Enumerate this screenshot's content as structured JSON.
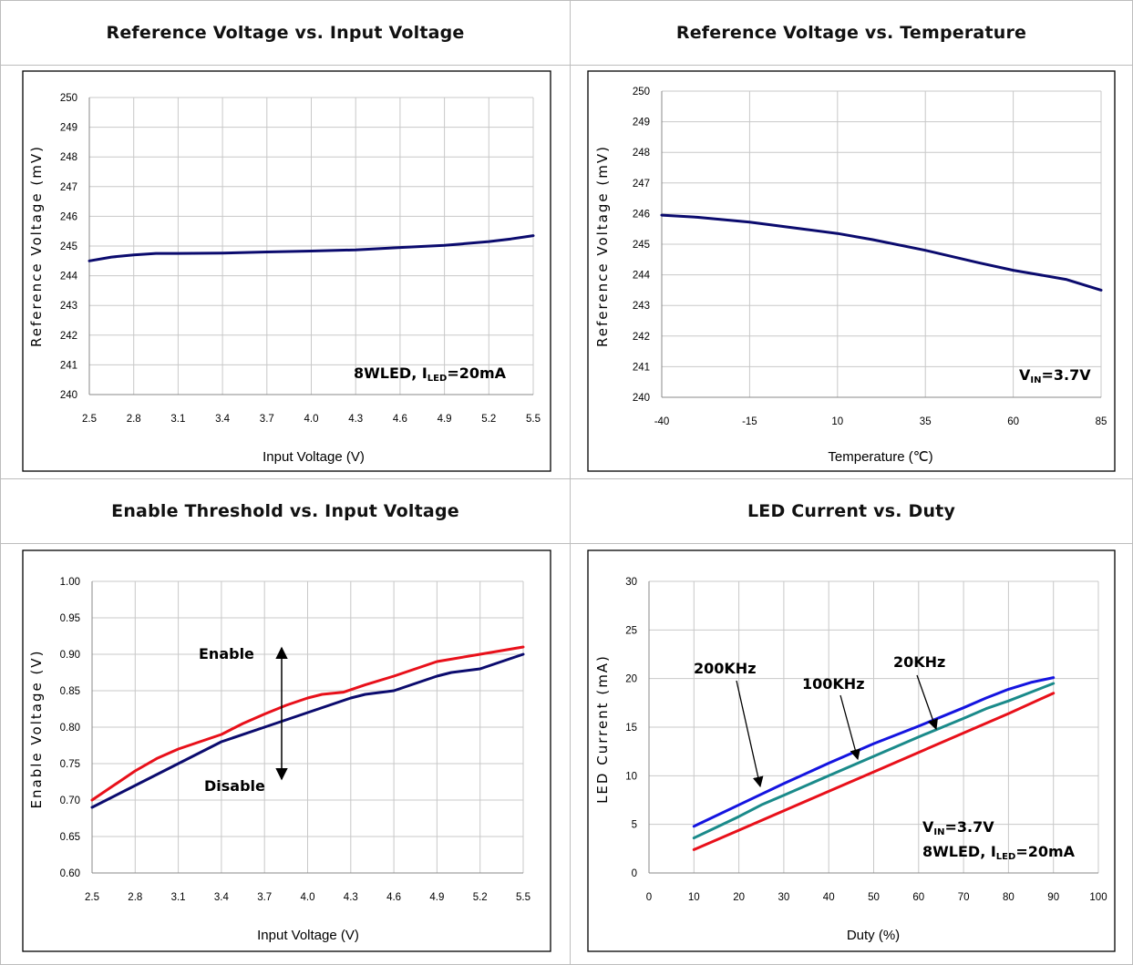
{
  "chart_data": [
    {
      "type": "line",
      "title": "Reference Voltage vs. Input Voltage",
      "xlabel": "Input Voltage (V)",
      "ylabel": "Reference Voltage (mV)",
      "xlim": [
        2.5,
        5.5
      ],
      "ylim": [
        240,
        250
      ],
      "x_ticks": [
        "2.5",
        "2.8",
        "3.1",
        "3.4",
        "3.7",
        "4.0",
        "4.3",
        "4.6",
        "4.9",
        "5.2",
        "5.5"
      ],
      "y_ticks": [
        "240",
        "241",
        "242",
        "243",
        "244",
        "245",
        "246",
        "247",
        "248",
        "249",
        "250"
      ],
      "grid": true,
      "annotations": [
        {
          "text": "8WLED, I",
          "sub": "LED",
          "tail": "=20mA"
        }
      ],
      "series": [
        {
          "color": "#0b0b6e",
          "x": [
            2.5,
            2.65,
            2.8,
            2.95,
            3.1,
            3.4,
            3.7,
            4.0,
            4.3,
            4.6,
            4.9,
            5.2,
            5.35,
            5.5
          ],
          "y": [
            244.5,
            244.63,
            244.7,
            244.75,
            244.75,
            244.76,
            244.8,
            244.83,
            244.87,
            244.95,
            245.02,
            245.15,
            245.24,
            245.35
          ]
        }
      ]
    },
    {
      "type": "line",
      "title": "Reference Voltage vs. Temperature",
      "xlabel": "Temperature (℃)",
      "ylabel": "Reference Voltage (mV)",
      "xlim": [
        -40,
        85
      ],
      "ylim": [
        240,
        250
      ],
      "x_ticks": [
        "-40",
        "-15",
        "10",
        "35",
        "60",
        "85"
      ],
      "y_ticks": [
        "240",
        "241",
        "242",
        "243",
        "244",
        "245",
        "246",
        "247",
        "248",
        "249",
        "250"
      ],
      "grid": true,
      "annotations": [
        {
          "text": "V",
          "sub": "IN",
          "tail": "=3.7V"
        }
      ],
      "series": [
        {
          "color": "#0b0b6e",
          "x": [
            -40,
            -30,
            -15,
            0,
            10,
            20,
            35,
            50,
            60,
            75,
            85
          ],
          "y": [
            245.95,
            245.88,
            245.72,
            245.5,
            245.35,
            245.15,
            244.8,
            244.4,
            244.15,
            243.85,
            243.5
          ]
        }
      ]
    },
    {
      "type": "line",
      "title": "Enable Threshold vs. Input Voltage",
      "xlabel": "Input Voltage (V)",
      "ylabel": "Enable Voltage (V)",
      "xlim": [
        2.5,
        5.5
      ],
      "ylim": [
        0.6,
        1.0
      ],
      "x_ticks": [
        "2.5",
        "2.8",
        "3.1",
        "3.4",
        "3.7",
        "4.0",
        "4.3",
        "4.6",
        "4.9",
        "5.2",
        "5.5"
      ],
      "y_ticks": [
        "0.60",
        "0.65",
        "0.70",
        "0.75",
        "0.80",
        "0.85",
        "0.90",
        "0.95",
        "1.00"
      ],
      "grid": true,
      "annotations": [
        {
          "text": "Enable"
        },
        {
          "text": "Disable"
        }
      ],
      "series": [
        {
          "color": "#e8101a",
          "x": [
            2.5,
            2.8,
            2.95,
            3.1,
            3.4,
            3.55,
            3.7,
            3.85,
            4.0,
            4.1,
            4.25,
            4.4,
            4.6,
            4.9,
            5.2,
            5.5
          ],
          "y": [
            0.7,
            0.74,
            0.757,
            0.77,
            0.79,
            0.805,
            0.818,
            0.83,
            0.84,
            0.845,
            0.848,
            0.858,
            0.87,
            0.89,
            0.9,
            0.91
          ]
        },
        {
          "color": "#0b0b6e",
          "x": [
            2.5,
            2.8,
            3.1,
            3.4,
            3.7,
            4.0,
            4.3,
            4.4,
            4.6,
            4.9,
            5.0,
            5.2,
            5.5
          ],
          "y": [
            0.69,
            0.72,
            0.75,
            0.78,
            0.8,
            0.82,
            0.84,
            0.845,
            0.85,
            0.87,
            0.875,
            0.88,
            0.9
          ]
        }
      ]
    },
    {
      "type": "line",
      "title": "LED Current vs. Duty",
      "xlabel": "Duty (%)",
      "ylabel": "LED Current (mA)",
      "xlim": [
        0,
        100
      ],
      "ylim": [
        0,
        30
      ],
      "x_ticks": [
        "0",
        "10",
        "20",
        "30",
        "40",
        "50",
        "60",
        "70",
        "80",
        "90",
        "100"
      ],
      "y_ticks": [
        "0",
        "5",
        "10",
        "15",
        "20",
        "25",
        "30"
      ],
      "grid": true,
      "annotations": [
        {
          "text": "200KHz"
        },
        {
          "text": "100KHz"
        },
        {
          "text": "20KHz"
        },
        {
          "text": "V",
          "sub": "IN",
          "tail": "=3.7V"
        },
        {
          "text": "8WLED, I",
          "sub": "LED",
          "tail": "=20mA"
        }
      ],
      "series": [
        {
          "name": "200KHz",
          "color": "#1414e0",
          "x": [
            10,
            20,
            30,
            40,
            50,
            60,
            70,
            75,
            80,
            85,
            90
          ],
          "y": [
            4.8,
            7.0,
            9.2,
            11.3,
            13.3,
            15.1,
            17.0,
            18.0,
            18.9,
            19.6,
            20.1
          ]
        },
        {
          "name": "100KHz",
          "color": "#1a8a8a",
          "x": [
            10,
            15,
            20,
            25,
            30,
            40,
            50,
            60,
            70,
            75,
            80,
            90
          ],
          "y": [
            3.6,
            4.7,
            5.8,
            7.0,
            8.0,
            10.0,
            12.0,
            14.0,
            15.9,
            16.9,
            17.7,
            19.5
          ]
        },
        {
          "name": "20KHz",
          "color": "#e8101a",
          "x": [
            10,
            20,
            30,
            40,
            50,
            60,
            70,
            80,
            90
          ],
          "y": [
            2.4,
            4.4,
            6.4,
            8.4,
            10.4,
            12.4,
            14.4,
            16.4,
            18.5
          ]
        }
      ]
    }
  ]
}
